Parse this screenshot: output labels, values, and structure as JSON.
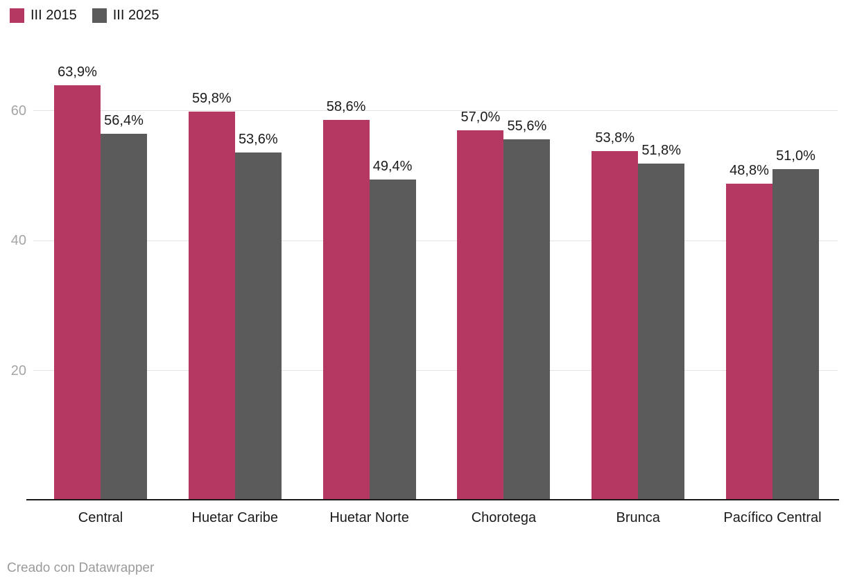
{
  "footer": {
    "text": "Creado con Datawrapper"
  },
  "colors": {
    "series_2015": "#b53862",
    "series_2025": "#5b5b5b",
    "gridline": "#e3e3e3",
    "axis_line": "#19191b",
    "tick_label": "#a5a5a5",
    "value_label": "#1a1a1a",
    "category_label": "#1a1a1a",
    "footer_text": "#9b9b9b",
    "background": "#ffffff"
  },
  "chart_data": {
    "type": "bar",
    "title": "",
    "xlabel": "",
    "ylabel": "",
    "categories": [
      "Central",
      "Huetar Caribe",
      "Huetar Norte",
      "Chorotega",
      "Brunca",
      "Pacífico Central"
    ],
    "series": [
      {
        "name": "III 2015",
        "color": "#b53862",
        "values": [
          63.9,
          59.8,
          58.6,
          57.0,
          53.8,
          48.8
        ],
        "labels": [
          "63,9%",
          "59,8%",
          "58,6%",
          "57,0%",
          "53,8%",
          "48,8%"
        ]
      },
      {
        "name": "III 2025",
        "color": "#5b5b5b",
        "values": [
          56.4,
          53.6,
          49.4,
          55.6,
          51.8,
          51.0
        ],
        "labels": [
          "56,4%",
          "53,6%",
          "49,4%",
          "55,6%",
          "51,8%",
          "51,0%"
        ]
      }
    ],
    "yticks": [
      20,
      40,
      60
    ],
    "ytick_labels": [
      "20",
      "40",
      "60"
    ],
    "ylim": [
      0,
      77
    ],
    "grid": true,
    "legend_position": "top-left",
    "value_suffix": "%",
    "decimal_separator": ","
  }
}
